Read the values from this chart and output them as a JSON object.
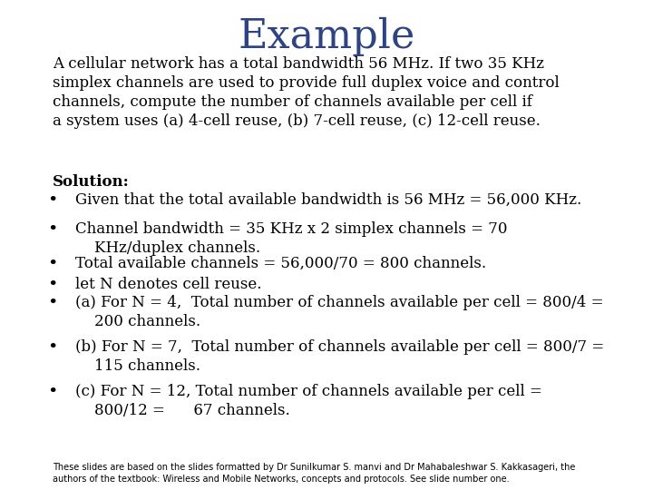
{
  "title": "Example",
  "title_color": "#2E4482",
  "title_fontsize": 32,
  "background_color": "#ffffff",
  "text_color": "#000000",
  "intro_text": "A cellular network has a total bandwidth 56 MHz. If two 35 KHz\nsimplex channels are used to provide full duplex voice and control\nchannels, compute the number of channels available per cell if\na system uses (a) 4-cell reuse, (b) 7-cell reuse, (c) 12-cell reuse.",
  "solution_label": "Solution:",
  "bullets": [
    "Given that the total available bandwidth is 56 MHz = 56,000 KHz.",
    "Channel bandwidth = 35 KHz x 2 simplex channels = 70\n    KHz/duplex channels.",
    "Total available channels = 56,000/70 = 800 channels.",
    "let N denotes cell reuse.",
    "(a) For N = 4,  Total number of channels available per cell = 800/4 =\n    200 channels.",
    "(b) For N = 7,  Total number of channels available per cell = 800/7 =\n    115 channels.",
    "(c) For N = 12, Total number of channels available per cell =\n    800/12 =      67 channels."
  ],
  "footer_text": "These slides are based on the slides formatted by Dr Sunilkumar S. manvi and Dr Mahabaleshwar S. Kakkasageri, the\nauthors of the textbook: Wireless and Mobile Networks, concepts and protocols. See slide number one.",
  "main_fontsize": 12,
  "solution_fontsize": 12,
  "footer_fontsize": 7.0
}
